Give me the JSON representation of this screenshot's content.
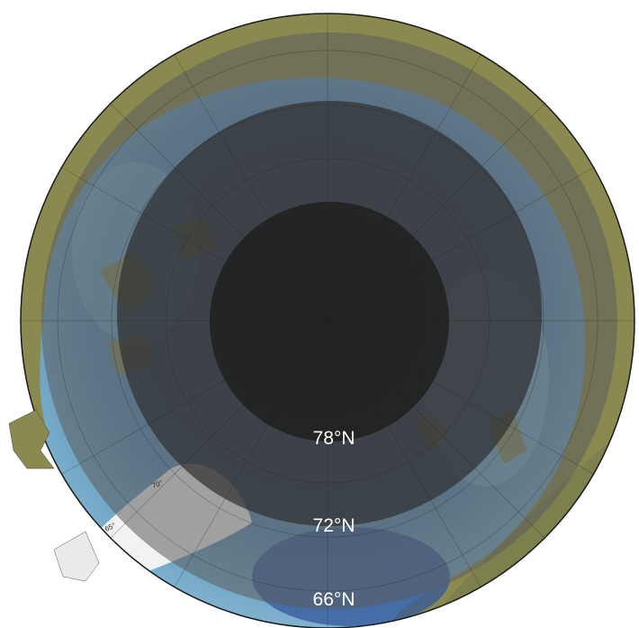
{
  "map": {
    "projection": "north-polar",
    "colors": {
      "ocean": "#5b8fb6",
      "deep_ocean": "#34579a",
      "shelf": "#8fc1d8",
      "land": "#8a8a50",
      "ice_sheet": "#f2f2f2",
      "rim": "#1a1a1a",
      "band_66": "#5c5c5c",
      "band_72": "#303032",
      "band_78": "#1e1e1e",
      "label": "#ffffff"
    },
    "zones": [
      {
        "latitude": "66°N",
        "label": "66°N"
      },
      {
        "latitude": "72°N",
        "label": "72°N"
      },
      {
        "latitude": "78°N",
        "label": "78°N"
      }
    ],
    "graticule_labels": [
      "70°",
      "65°"
    ]
  }
}
